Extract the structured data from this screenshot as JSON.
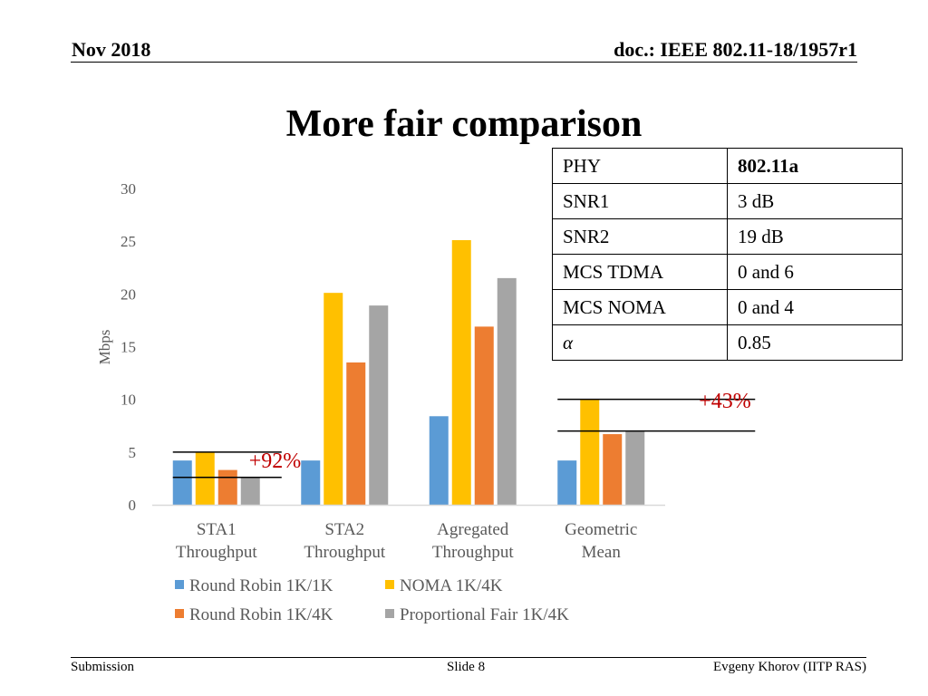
{
  "header": {
    "date": "Nov 2018",
    "doc": "doc.: IEEE 802.11-18/1957r1"
  },
  "title": "More fair comparison",
  "footer": {
    "left": "Submission",
    "center": "Slide 8",
    "right": "Evgeny Khorov (IITP RAS)"
  },
  "table": {
    "rows": [
      {
        "key": "PHY",
        "value": "802.11a"
      },
      {
        "key": "SNR1",
        "value": "3 dB"
      },
      {
        "key": "SNR2",
        "value": "19 dB"
      },
      {
        "key": "MCS TDMA",
        "value": "0 and 6"
      },
      {
        "key": "MCS NOMA",
        "value": "0 and 4"
      },
      {
        "key": "α",
        "value": "0.85"
      }
    ]
  },
  "chart_data": {
    "type": "bar",
    "title": "",
    "xlabel": "",
    "ylabel": "Mbps",
    "ylim": [
      0,
      30
    ],
    "yticks": [
      0,
      5,
      10,
      15,
      20,
      25,
      30
    ],
    "categories": [
      [
        "STA1",
        "Throughput"
      ],
      [
        "STA2",
        "Throughput"
      ],
      [
        "Agregated",
        "Throughput"
      ],
      [
        "Geometric",
        "Mean"
      ]
    ],
    "series": [
      {
        "name": "Round Robin 1K/1K",
        "color": "#5B9BD5",
        "values": [
          4.2,
          4.2,
          8.4,
          4.2
        ]
      },
      {
        "name": "NOMA 1K/4K",
        "color": "#FFC000",
        "values": [
          5.0,
          20.1,
          25.1,
          10.0
        ]
      },
      {
        "name": "Round Robin 1K/4K",
        "color": "#ED7D31",
        "values": [
          3.3,
          13.5,
          16.9,
          6.7
        ]
      },
      {
        "name": "Proportional Fair 1K/4K",
        "color": "#A5A5A5",
        "values": [
          2.6,
          18.9,
          21.5,
          7.0
        ]
      }
    ],
    "legend_order": [
      0,
      1,
      2,
      3
    ],
    "annotations": [
      {
        "text": "+92%",
        "color": "#C00000",
        "category": 0,
        "lines_at": [
          5.0,
          2.6
        ]
      },
      {
        "text": "+43%",
        "color": "#C00000",
        "category": 3,
        "lines_at": [
          10.0,
          7.0
        ]
      }
    ]
  }
}
